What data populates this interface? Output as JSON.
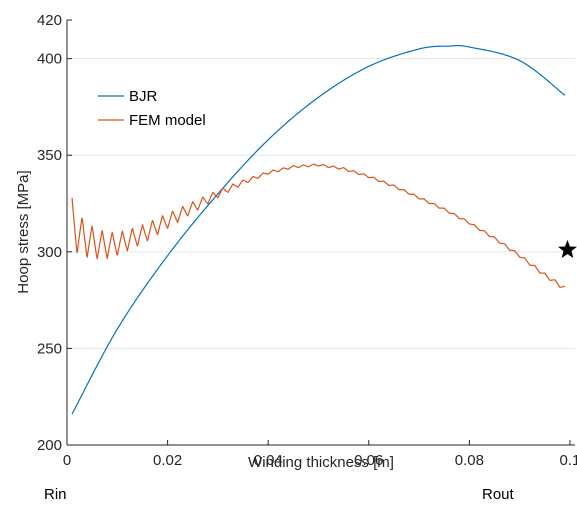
{
  "chart_data": {
    "type": "line",
    "xlabel": "Winding thickness [m]",
    "ylabel": "Hoop stress [MPa]",
    "xlim": [
      0,
      0.101
    ],
    "ylim": [
      200,
      420
    ],
    "xticks": [
      0,
      0.02,
      0.04,
      0.06,
      0.08,
      0.1
    ],
    "xtick_labels": [
      "0",
      "0.02",
      "0.04",
      "0.06",
      "0.08",
      "0.1"
    ],
    "yticks": [
      200,
      250,
      300,
      350,
      400,
      420
    ],
    "ytick_labels": [
      "200",
      "250",
      "300",
      "350",
      "400",
      "420"
    ],
    "grid": "horizontal",
    "legend_position": "upper-left",
    "series": [
      {
        "name": "BJR",
        "color": "#0072BD",
        "x": [
          0.001,
          0.01,
          0.02,
          0.03,
          0.04,
          0.05,
          0.06,
          0.07,
          0.076,
          0.08,
          0.09,
          0.099
        ],
        "y": [
          216,
          260,
          298,
          330,
          358,
          380,
          396,
          405,
          406.5,
          406,
          399,
          381
        ]
      },
      {
        "name": "FEM model",
        "color": "#D95319",
        "x": [
          0.001,
          0.002,
          0.004,
          0.006,
          0.008,
          0.01,
          0.015,
          0.02,
          0.025,
          0.03,
          0.035,
          0.04,
          0.045,
          0.05,
          0.055,
          0.06,
          0.065,
          0.07,
          0.075,
          0.08,
          0.085,
          0.09,
          0.095,
          0.099
        ],
        "y": [
          316,
          310,
          306,
          304,
          303.5,
          304,
          309,
          316,
          323,
          330,
          336,
          341,
          344,
          345,
          343,
          339,
          334,
          328,
          322,
          315,
          307,
          298,
          288,
          281
        ],
        "oscillation": {
          "amplitude": [
            12,
            11,
            9,
            8,
            7,
            6,
            5,
            4,
            3,
            2,
            1.2,
            0.8,
            0.6,
            0.6,
            0.6,
            0.6,
            0.6,
            0.6,
            0.6,
            0.6,
            0.7,
            0.8,
            1.0,
            1.2
          ],
          "period": 0.002
        }
      }
    ],
    "annotations": [
      {
        "type": "marker",
        "symbol": "star",
        "x": 0.0995,
        "y": 301,
        "color": "#000000"
      }
    ]
  },
  "outside_labels": {
    "left": "Rin",
    "right": "Rout"
  }
}
